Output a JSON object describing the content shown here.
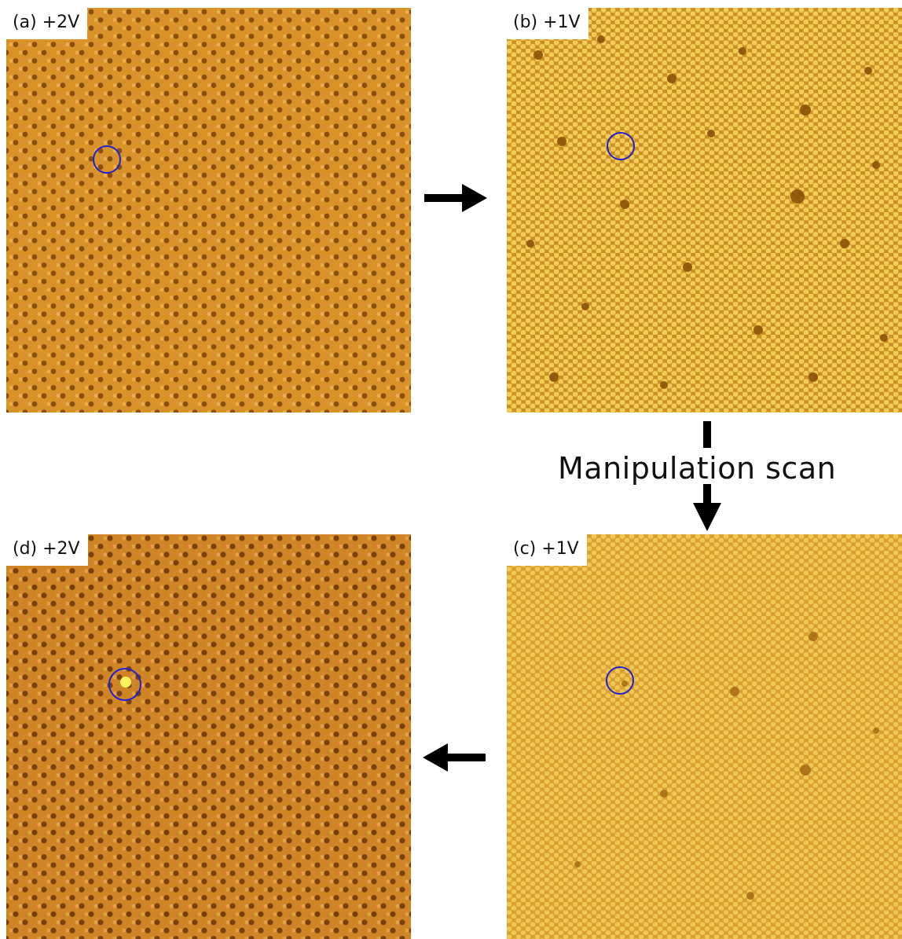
{
  "panels": [
    {
      "id": "a",
      "label": "(a) +2V",
      "tone": "orange",
      "colors": {
        "bg": "#d9912a",
        "dot": "#8a4e0c",
        "hi": "#efb450"
      }
    },
    {
      "id": "b",
      "label": "(b) +1V",
      "tone": "yellow",
      "colors": {
        "bg": "#e9b73a",
        "dot": "#a2680f",
        "hi": "#f7d668"
      }
    },
    {
      "id": "c",
      "label": "(c) +1V",
      "tone": "light-yellow",
      "colors": {
        "bg": "#e8b23c",
        "dot": "#b87a1e",
        "hi": "#f3cc63"
      }
    },
    {
      "id": "d",
      "label": "(d) +2V",
      "tone": "orange",
      "colors": {
        "bg": "#cf8526",
        "dot": "#7a400a",
        "hi": "#eaa848"
      }
    }
  ],
  "caption": "Manipulation scan",
  "marker_color": "#2020d0"
}
